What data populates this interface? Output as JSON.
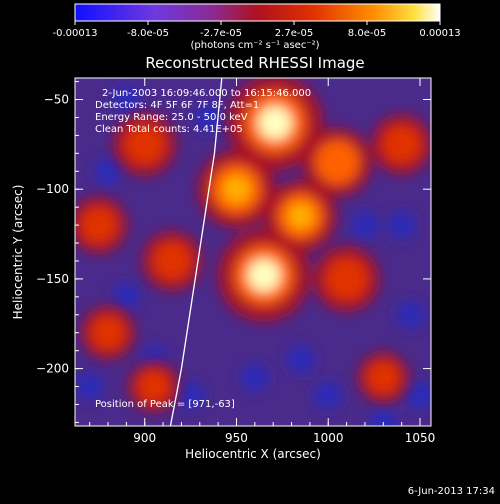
{
  "colorbar": {
    "tick_labels": [
      "-0.00013",
      "-8.0e-05",
      "-2.7e-05",
      "2.7e-05",
      "8.0e-05",
      "0.00013"
    ],
    "units": "(photons cm⁻² s⁻¹ asec⁻²)",
    "colors": [
      "#1010ff",
      "#8040d0",
      "#a02060",
      "#d01000",
      "#ff6000",
      "#ffc000",
      "#ffffff"
    ]
  },
  "chart_data": {
    "type": "heatmap",
    "title": "Reconstructed RHESSI Image",
    "xlabel": "Heliocentric X (arcsec)",
    "ylabel": "Heliocentric Y (arcsec)",
    "xlim": [
      862,
      1056
    ],
    "ylim": [
      -232,
      -38
    ],
    "x_ticks": [
      900,
      950,
      1000,
      1050
    ],
    "y_ticks": [
      -50,
      -100,
      -150,
      -200
    ],
    "annotations": [
      "2-Jun-2003 16:09:46.000 to 16:15:46.000",
      "Detectors: 4F 5F 6F 7F 8F, Att=1",
      "Energy Range: 25.0 - 50.0 keV",
      "Clean     Total counts: 4.41E+05",
      "Position of Peak = [971,-63]"
    ],
    "peak_position": [
      971,
      -63
    ],
    "limb_curve": [
      [
        942,
        -38
      ],
      [
        938,
        -80
      ],
      [
        932,
        -120
      ],
      [
        926,
        -160
      ],
      [
        920,
        -200
      ],
      [
        914,
        -232
      ]
    ],
    "sources": [
      {
        "x": 971,
        "y": -63,
        "level": 1.0
      },
      {
        "x": 965,
        "y": -148,
        "level": 0.95
      },
      {
        "x": 950,
        "y": -100,
        "level": 0.7
      },
      {
        "x": 985,
        "y": -115,
        "level": 0.6
      },
      {
        "x": 1005,
        "y": -85,
        "level": 0.55
      },
      {
        "x": 1010,
        "y": -150,
        "level": 0.5
      },
      {
        "x": 900,
        "y": -75,
        "level": 0.45
      },
      {
        "x": 875,
        "y": -120,
        "level": 0.35
      },
      {
        "x": 915,
        "y": -140,
        "level": 0.4
      },
      {
        "x": 1040,
        "y": -75,
        "level": 0.4
      },
      {
        "x": 880,
        "y": -180,
        "level": 0.3
      },
      {
        "x": 1030,
        "y": -205,
        "level": 0.25
      },
      {
        "x": 905,
        "y": -210,
        "level": 0.25
      }
    ]
  },
  "footer": {
    "timestamp": "6-Jun-2013 17:34"
  }
}
